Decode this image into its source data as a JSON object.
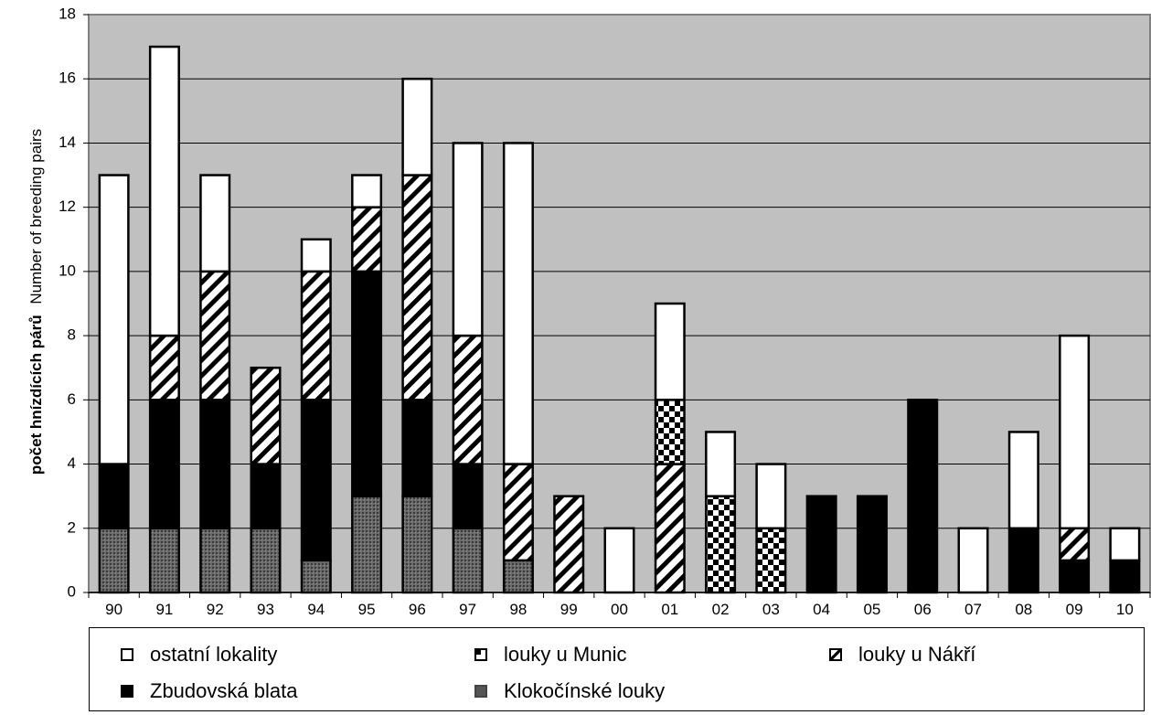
{
  "chart_data": {
    "type": "bar",
    "stacked": true,
    "ylabel_bold": "počet hnízdících párů",
    "ylabel_rest": "Number of breeding pairs",
    "ylim": [
      0,
      18
    ],
    "yticks": [
      0,
      2,
      4,
      6,
      8,
      10,
      12,
      14,
      16,
      18
    ],
    "grid": true,
    "legend_position": "bottom",
    "categories": [
      "90",
      "91",
      "92",
      "93",
      "94",
      "95",
      "96",
      "97",
      "98",
      "99",
      "00",
      "01",
      "02",
      "03",
      "04",
      "05",
      "06",
      "07",
      "08",
      "09",
      "10"
    ],
    "series": [
      {
        "name": "Klokočínské louky",
        "pattern": "dots",
        "color": "#555555",
        "values": [
          2,
          2,
          2,
          2,
          1,
          3,
          3,
          2,
          1,
          0,
          0,
          0,
          0,
          0,
          0,
          0,
          0,
          0,
          0,
          0,
          0
        ]
      },
      {
        "name": "Zbudovská blata",
        "pattern": "solid",
        "color": "#000000",
        "values": [
          2,
          4,
          4,
          2,
          5,
          7,
          3,
          2,
          0,
          0,
          0,
          0,
          0,
          0,
          3,
          3,
          6,
          0,
          2,
          1,
          1
        ]
      },
      {
        "name": "louky u Nákří",
        "pattern": "diagonal",
        "color": "#000000",
        "values": [
          0,
          2,
          4,
          3,
          4,
          2,
          7,
          4,
          3,
          3,
          0,
          4,
          0,
          0,
          0,
          0,
          0,
          0,
          0,
          1,
          0
        ]
      },
      {
        "name": "louky u Munic",
        "pattern": "checker",
        "color": "#000000",
        "values": [
          0,
          0,
          0,
          0,
          0,
          0,
          0,
          0,
          0,
          0,
          0,
          2,
          3,
          2,
          0,
          0,
          0,
          0,
          0,
          0,
          0
        ]
      },
      {
        "name": "ostatní lokality",
        "pattern": "white",
        "color": "#ffffff",
        "values": [
          9,
          9,
          3,
          0,
          1,
          1,
          3,
          6,
          10,
          0,
          2,
          3,
          2,
          2,
          0,
          0,
          0,
          2,
          3,
          6,
          1
        ]
      }
    ],
    "legend_order": [
      "ostatní lokality",
      "louky u Munic",
      "louky u Nákří",
      "Zbudovská blata",
      "Klokočínské louky"
    ],
    "plot_background": "#c0c0c0"
  }
}
